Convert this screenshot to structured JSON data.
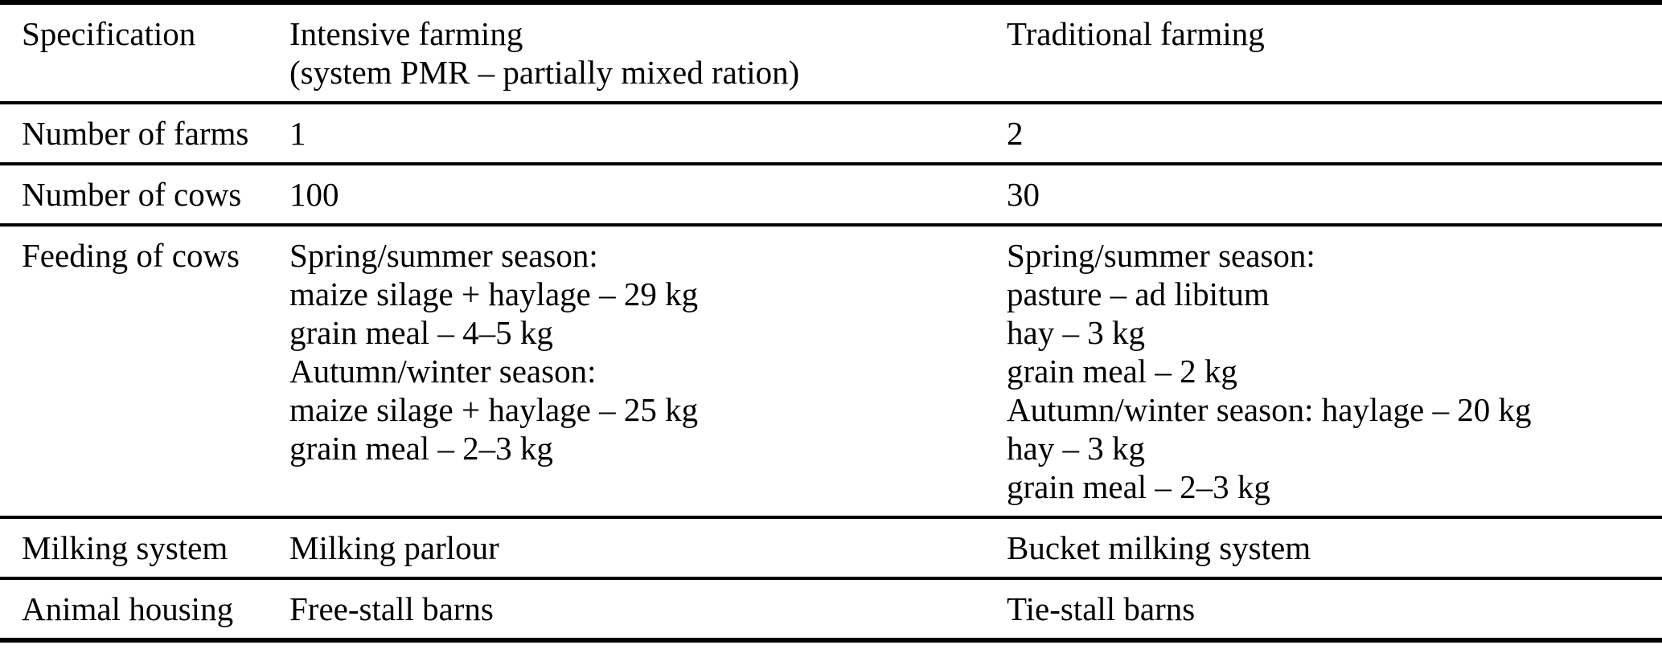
{
  "page": {
    "background": "#ffffff",
    "text_color": "#000000",
    "rule_color": "#000000"
  },
  "table": {
    "header": {
      "specification": "Specification",
      "intensive_line1": "Intensive farming",
      "intensive_line2": "(system PMR – partially mixed ration)",
      "traditional": "Traditional farming"
    },
    "rows": [
      {
        "label": "Number of farms",
        "intensive": [
          "1"
        ],
        "traditional": [
          "2"
        ]
      },
      {
        "label": "Number of cows",
        "intensive": [
          "100"
        ],
        "traditional": [
          "30"
        ]
      },
      {
        "label": "Feeding of cows",
        "intensive": [
          "Spring/summer season:",
          "maize silage + haylage – 29 kg",
          "grain meal – 4–5 kg",
          "Autumn/winter season:",
          "maize silage + haylage – 25 kg",
          "grain meal – 2–3 kg"
        ],
        "traditional": [
          "Spring/summer season:",
          "pasture – ad libitum",
          "hay – 3 kg",
          "grain meal – 2 kg",
          "Autumn/winter season: haylage – 20 kg",
          "hay – 3 kg",
          "grain meal – 2–3 kg"
        ]
      },
      {
        "label": "Milking system",
        "intensive": [
          "Milking parlour"
        ],
        "traditional": [
          "Bucket milking system"
        ]
      },
      {
        "label": "Animal housing",
        "intensive": [
          "Free-stall barns"
        ],
        "traditional": [
          "Tie-stall barns"
        ]
      }
    ]
  }
}
